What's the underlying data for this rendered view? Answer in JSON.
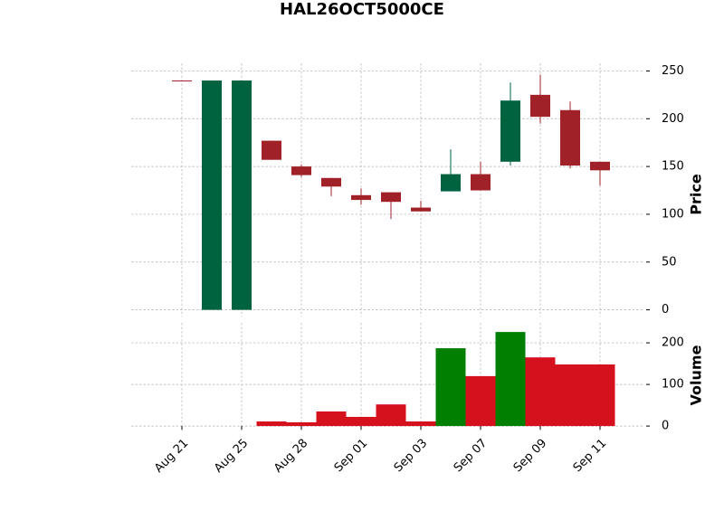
{
  "chart_data": {
    "type": "candlestick",
    "title": "HAL26OCT5000CE",
    "categories": [
      "Aug 21",
      null,
      "Aug 25",
      null,
      "Aug 28",
      null,
      "Sep 01",
      null,
      "Sep 03",
      null,
      "Sep 07",
      null,
      "Sep 09",
      null,
      "Sep 11"
    ],
    "open": [
      240,
      0,
      0,
      177,
      150,
      138,
      120,
      123,
      107,
      124,
      142,
      155,
      225,
      209,
      155
    ],
    "high": [
      240,
      240,
      240,
      177,
      152,
      138,
      127,
      123,
      114,
      168,
      155,
      238,
      246,
      218,
      155
    ],
    "low": [
      240,
      0,
      0,
      157,
      139,
      119,
      110,
      95,
      103,
      124,
      125,
      151,
      195,
      148,
      130
    ],
    "close": [
      240,
      240,
      240,
      157,
      141,
      129,
      115,
      113,
      103,
      142,
      125,
      219,
      202,
      151,
      146
    ],
    "volume": [
      0,
      0,
      0,
      11,
      9,
      35,
      22,
      52,
      11,
      187,
      120,
      226,
      165,
      148,
      148
    ],
    "up_color": "#006340",
    "down_color": "#a02128",
    "volume_up_color": "#007f00",
    "volume_down_color": "#d4111d",
    "ylabel": "Price",
    "ylim": [
      -7,
      258
    ],
    "yticks": [
      0,
      50,
      100,
      150,
      200,
      250
    ],
    "volume_label": "Volume",
    "volume_lim": [
      -15,
      248
    ],
    "volume_ticks": [
      0,
      100,
      200
    ],
    "grid": true
  }
}
